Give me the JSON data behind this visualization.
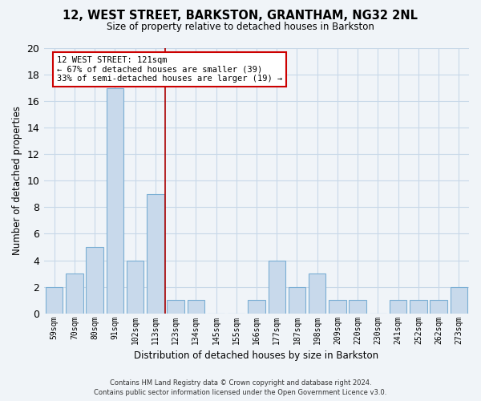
{
  "title": "12, WEST STREET, BARKSTON, GRANTHAM, NG32 2NL",
  "subtitle": "Size of property relative to detached houses in Barkston",
  "xlabel": "Distribution of detached houses by size in Barkston",
  "ylabel": "Number of detached properties",
  "bar_labels": [
    "59sqm",
    "70sqm",
    "80sqm",
    "91sqm",
    "102sqm",
    "113sqm",
    "123sqm",
    "134sqm",
    "145sqm",
    "155sqm",
    "166sqm",
    "177sqm",
    "187sqm",
    "198sqm",
    "209sqm",
    "220sqm",
    "230sqm",
    "241sqm",
    "252sqm",
    "262sqm",
    "273sqm"
  ],
  "bar_values": [
    2,
    3,
    5,
    17,
    4,
    9,
    1,
    1,
    0,
    0,
    1,
    4,
    2,
    3,
    1,
    1,
    0,
    1,
    1,
    1,
    2
  ],
  "bar_color": "#c8d9eb",
  "bar_edge_color": "#7bafd4",
  "highlight_line_index": 6,
  "highlight_color": "#aa0000",
  "annotation_title": "12 WEST STREET: 121sqm",
  "annotation_line1": "← 67% of detached houses are smaller (39)",
  "annotation_line2": "33% of semi-detached houses are larger (19) →",
  "annotation_box_color": "#ffffff",
  "annotation_box_edge": "#cc0000",
  "ylim": [
    0,
    20
  ],
  "yticks": [
    0,
    2,
    4,
    6,
    8,
    10,
    12,
    14,
    16,
    18,
    20
  ],
  "bg_color": "#f0f4f8",
  "plot_bg_color": "#f0f4f8",
  "grid_color": "#c8d8e8",
  "footer_line1": "Contains HM Land Registry data © Crown copyright and database right 2024.",
  "footer_line2": "Contains public sector information licensed under the Open Government Licence v3.0."
}
